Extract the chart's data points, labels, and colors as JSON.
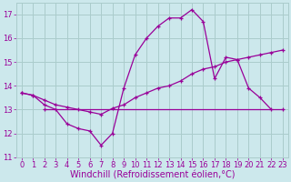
{
  "background_color": "#cce8ec",
  "grid_color": "#aacccc",
  "line_color": "#990099",
  "xlim": [
    -0.5,
    23.5
  ],
  "ylim": [
    11,
    17.5
  ],
  "xticks": [
    0,
    1,
    2,
    3,
    4,
    5,
    6,
    7,
    8,
    9,
    10,
    11,
    12,
    13,
    14,
    15,
    16,
    17,
    18,
    19,
    20,
    21,
    22,
    23
  ],
  "yticks": [
    11,
    12,
    13,
    14,
    15,
    16,
    17
  ],
  "xlabel": "Windchill (Refroidissement éolien,°C)",
  "line1_x": [
    0,
    1,
    2,
    3,
    4,
    5,
    6,
    7,
    8,
    9,
    10,
    11,
    12,
    13,
    14,
    15,
    16,
    17,
    18,
    19,
    20,
    21,
    22,
    23
  ],
  "line1_y": [
    13.7,
    13.6,
    13.2,
    13.0,
    12.4,
    12.2,
    12.1,
    11.5,
    12.0,
    13.9,
    15.3,
    16.0,
    16.5,
    16.85,
    16.85,
    17.2,
    16.7,
    14.3,
    15.2,
    15.1,
    13.9,
    13.5,
    13.0,
    null
  ],
  "line2_x": [
    0,
    1,
    2,
    3,
    4,
    5,
    6,
    7,
    8,
    9,
    10,
    11,
    12,
    13,
    14,
    15,
    16,
    17,
    18,
    19,
    20,
    21,
    22,
    23
  ],
  "line2_y": [
    13.7,
    13.6,
    13.4,
    13.2,
    13.1,
    13.0,
    12.9,
    12.8,
    13.05,
    13.2,
    13.5,
    13.7,
    13.9,
    14.0,
    14.2,
    14.5,
    14.7,
    14.8,
    15.0,
    15.1,
    15.2,
    15.3,
    15.4,
    15.5
  ],
  "line3_x": [
    2,
    23
  ],
  "line3_y": [
    13.0,
    13.0
  ],
  "tick_fontsize": 6,
  "xlabel_fontsize": 7
}
